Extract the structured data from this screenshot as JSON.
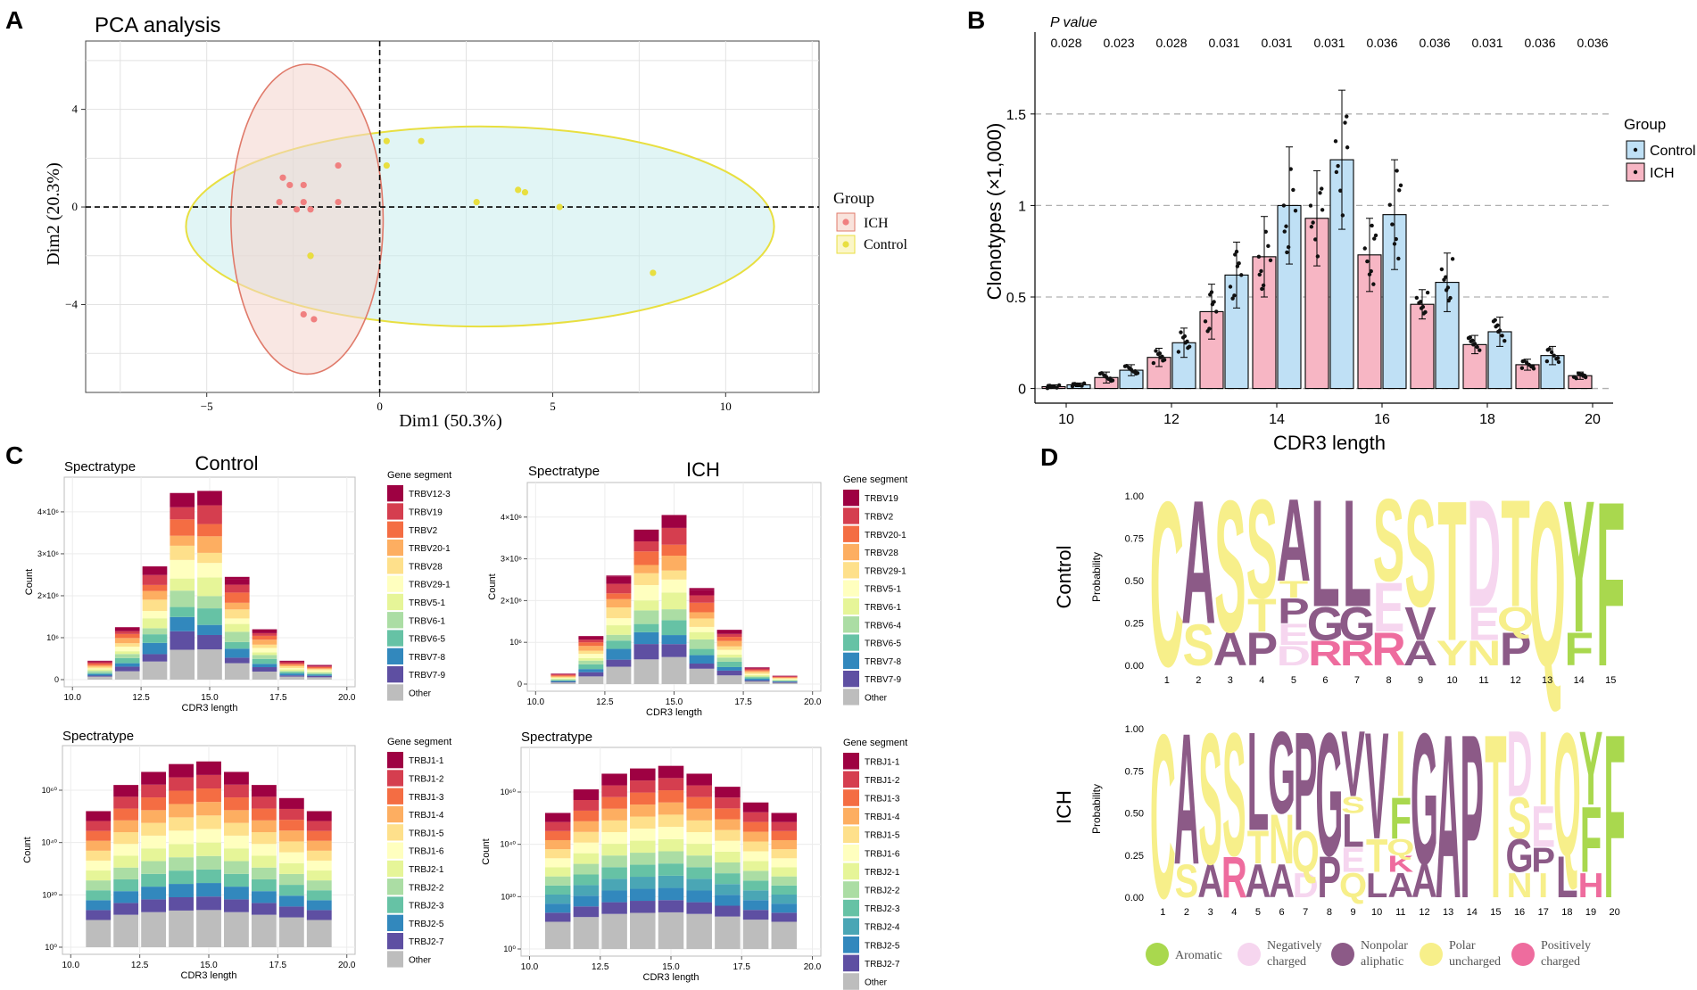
{
  "panels": {
    "A": "A",
    "B": "B",
    "C": "C",
    "D": "D"
  },
  "colors": {
    "ich": "#f08080",
    "control": "#e8df40",
    "ellipse_ich": "#f4d3cc",
    "ellipse_ctrl": "#c8ecec",
    "bar_ich": "#f7b6c4",
    "bar_ctrl": "#bfe0f5"
  },
  "chart_data": [
    {
      "id": "A",
      "type": "scatter",
      "title": "PCA analysis",
      "xlabel": "Dim1 (50.3%)",
      "ylabel": "Dim2 (20.3%)",
      "xlim": [
        -8.5,
        12.7
      ],
      "ylim": [
        -7.6,
        6.8
      ],
      "xticks": [
        -5,
        0,
        5,
        10
      ],
      "yticks": [
        4,
        0,
        -4
      ],
      "legend": {
        "title": "Group",
        "entries": [
          "ICH",
          "Control"
        ]
      },
      "series": [
        {
          "name": "ICH",
          "points": [
            [
              -2.8,
              1.2
            ],
            [
              -2.6,
              0.9
            ],
            [
              -2.2,
              0.9
            ],
            [
              -1.2,
              1.7
            ],
            [
              -2.9,
              0.2
            ],
            [
              -2.2,
              0.2
            ],
            [
              -1.2,
              0.2
            ],
            [
              -2.4,
              -0.1
            ],
            [
              -2,
              -0.1
            ],
            [
              -2,
              -2
            ],
            [
              -2.2,
              -4.4
            ],
            [
              -1.9,
              -4.6
            ]
          ]
        },
        {
          "name": "Control",
          "points": [
            [
              0.2,
              2.7
            ],
            [
              1.2,
              2.7
            ],
            [
              0.2,
              1.7
            ],
            [
              4,
              0.7
            ],
            [
              4.2,
              0.6
            ],
            [
              2.8,
              0.2
            ],
            [
              5.2,
              0
            ],
            [
              -2,
              -2
            ],
            [
              7.9,
              -2.7
            ]
          ]
        }
      ]
    },
    {
      "id": "B",
      "type": "bar",
      "xlabel": "CDR3 length",
      "ylabel": "Clonotypes (×1,000)",
      "ylim": [
        -0.08,
        1.85
      ],
      "yticks": [
        0,
        0.5,
        1,
        1.5
      ],
      "xticks": [
        10,
        12,
        14,
        16,
        18,
        20
      ],
      "legend": {
        "title": "Group",
        "entries": [
          "Control",
          "ICH"
        ]
      },
      "pvalue_title": "P value",
      "pvalues": [
        "0.028",
        "0.023",
        "0.028",
        "0.031",
        "0.031",
        "0.031",
        "0.036",
        "0.036",
        "0.031",
        "0.036",
        "0.036"
      ],
      "categories": [
        10,
        11,
        12,
        13,
        14,
        15,
        16,
        17,
        18,
        19,
        20
      ],
      "series": [
        {
          "name": "ICH",
          "values": [
            0.01,
            0.06,
            0.17,
            0.42,
            0.72,
            0.93,
            0.73,
            0.46,
            0.24,
            0.13,
            0.07
          ],
          "errors": [
            0.01,
            0.03,
            0.05,
            0.15,
            0.22,
            0.26,
            0.2,
            0.08,
            0.05,
            0.03,
            0.02
          ]
        },
        {
          "name": "Control",
          "values": [
            0.02,
            0.1,
            0.25,
            0.62,
            1.0,
            1.25,
            0.95,
            0.58,
            0.31,
            0.18,
            0.0
          ],
          "errors": [
            0.01,
            0.03,
            0.08,
            0.18,
            0.32,
            0.38,
            0.3,
            0.16,
            0.08,
            0.05,
            0.0
          ]
        }
      ]
    },
    {
      "id": "C-control-v",
      "type": "bar",
      "stacked": true,
      "title": "Control",
      "subtitle": "Spectratype",
      "xlabel": "CDR3 length",
      "ylabel": "Count",
      "ytick_labels": [
        "0",
        "10⁶",
        "2×10⁶",
        "3×10⁶",
        "4×10⁶"
      ],
      "xtick_labels": [
        "10.0",
        "12.5",
        "15.0",
        "17.5",
        "20.0"
      ],
      "legend_title": "Gene segment",
      "segments": [
        "TRBV12-3",
        "TRBV19",
        "TRBV2",
        "TRBV20-1",
        "TRBV28",
        "TRBV29-1",
        "TRBV5-1",
        "TRBV6-1",
        "TRBV6-5",
        "TRBV7-8",
        "TRBV7-9",
        "Other"
      ],
      "categories": [
        11,
        12,
        13,
        14,
        15,
        16,
        17,
        18,
        19
      ],
      "totals_millions": [
        0.45,
        1.25,
        2.7,
        4.45,
        4.5,
        2.45,
        1.2,
        0.45,
        0.35
      ]
    },
    {
      "id": "C-ich-v",
      "type": "bar",
      "stacked": true,
      "title": "ICH",
      "subtitle": "Spectratype",
      "xlabel": "CDR3 length",
      "ylabel": "Count",
      "ytick_labels": [
        "0",
        "10⁶",
        "2×10⁶",
        "3×10⁶",
        "4×10⁶"
      ],
      "xtick_labels": [
        "10.0",
        "12.5",
        "15.0",
        "17.5",
        "20.0"
      ],
      "legend_title": "Gene segment",
      "segments": [
        "TRBV19",
        "TRBV2",
        "TRBV20-1",
        "TRBV28",
        "TRBV29-1",
        "TRBV5-1",
        "TRBV6-1",
        "TRBV6-4",
        "TRBV6-5",
        "TRBV7-8",
        "TRBV7-9",
        "Other"
      ],
      "categories": [
        11,
        12,
        13,
        14,
        15,
        16,
        17,
        18,
        19
      ],
      "totals_millions": [
        0.25,
        1.15,
        2.6,
        3.7,
        4.05,
        2.3,
        1.3,
        0.4,
        0.2
      ]
    },
    {
      "id": "C-control-j",
      "type": "bar",
      "stacked": true,
      "subtitle": "Spectratype",
      "xlabel": "CDR3 length",
      "ylabel": "Count",
      "ytick_labels": [
        "10⁰",
        "10²⁰",
        "10⁴⁰",
        "10⁶⁰"
      ],
      "xtick_labels": [
        "10.0",
        "12.5",
        "15.0",
        "17.5",
        "20.0"
      ],
      "legend_title": "Gene segment",
      "segments": [
        "TRBJ1-1",
        "TRBJ1-2",
        "TRBJ1-3",
        "TRBJ1-4",
        "TRBJ1-5",
        "TRBJ1-6",
        "TRBJ2-1",
        "TRBJ2-2",
        "TRBJ2-3",
        "TRBJ2-5",
        "TRBJ2-7",
        "Other"
      ],
      "categories": [
        11,
        12,
        13,
        14,
        15,
        16,
        17,
        18,
        19
      ],
      "totals_log10": [
        52,
        62,
        67,
        70,
        71,
        67,
        62,
        57,
        52
      ]
    },
    {
      "id": "C-ich-j",
      "type": "bar",
      "stacked": true,
      "subtitle": "Spectratype",
      "xlabel": "CDR3 length",
      "ylabel": "Count",
      "ytick_labels": [
        "10⁰",
        "10²⁰",
        "10⁴⁰",
        "10⁶⁰"
      ],
      "xtick_labels": [
        "10.0",
        "12.5",
        "15.0",
        "17.5",
        "20.0"
      ],
      "legend_title": "Gene segment",
      "segments": [
        "TRBJ1-1",
        "TRBJ1-2",
        "TRBJ1-3",
        "TRBJ1-4",
        "TRBJ1-5",
        "TRBJ1-6",
        "TRBJ2-1",
        "TRBJ2-2",
        "TRBJ2-3",
        "TRBJ2-4",
        "TRBJ2-5",
        "TRBJ2-7",
        "Other"
      ],
      "categories": [
        11,
        12,
        13,
        14,
        15,
        16,
        17,
        18,
        19
      ],
      "totals_log10": [
        52,
        61,
        67,
        69,
        70,
        67,
        62,
        56,
        52
      ]
    },
    {
      "id": "D-control",
      "type": "sequence-logo",
      "row_label": "Control",
      "ylabel": "Probability",
      "yticks": [
        "1.00",
        "0.75",
        "0.50",
        "0.25",
        "0.00"
      ],
      "positions": [
        "1",
        "2",
        "3",
        "4",
        "5",
        "6",
        "7",
        "8",
        "9",
        "10",
        "11",
        "12",
        "13",
        "14",
        "15"
      ],
      "stacks": [
        [
          [
            "C",
            1.0,
            "polar"
          ]
        ],
        [
          [
            "S",
            0.25,
            "polar"
          ],
          [
            "A",
            0.75,
            "nonpolar"
          ]
        ],
        [
          [
            "A",
            0.2,
            "nonpolar"
          ],
          [
            "S",
            0.8,
            "polar"
          ]
        ],
        [
          [
            "P",
            0.2,
            "nonpolar"
          ],
          [
            "T",
            0.2,
            "polar"
          ],
          [
            "S",
            0.6,
            "polar"
          ]
        ],
        [
          [
            "D",
            0.12,
            "negative"
          ],
          [
            "E",
            0.13,
            "negative"
          ],
          [
            "P",
            0.15,
            "nonpolar"
          ],
          [
            "T",
            0.1,
            "polar"
          ],
          [
            "A",
            0.5,
            "nonpolar"
          ]
        ],
        [
          [
            "R",
            0.15,
            "positive"
          ],
          [
            "G",
            0.2,
            "nonpolar"
          ],
          [
            "L",
            0.65,
            "nonpolar"
          ]
        ],
        [
          [
            "R",
            0.15,
            "positive"
          ],
          [
            "G",
            0.2,
            "nonpolar"
          ],
          [
            "L",
            0.65,
            "nonpolar"
          ]
        ],
        [
          [
            "R",
            0.2,
            "positive"
          ],
          [
            "E",
            0.3,
            "negative"
          ],
          [
            "S",
            0.5,
            "polar"
          ]
        ],
        [
          [
            "A",
            0.15,
            "nonpolar"
          ],
          [
            "V",
            0.2,
            "nonpolar"
          ],
          [
            "S",
            0.65,
            "polar"
          ]
        ],
        [
          [
            "Y",
            0.15,
            "polar"
          ],
          [
            "T",
            0.85,
            "polar"
          ]
        ],
        [
          [
            "N",
            0.15,
            "polar"
          ],
          [
            "E",
            0.2,
            "negative"
          ],
          [
            "D",
            0.65,
            "negative"
          ]
        ],
        [
          [
            "P",
            0.2,
            "nonpolar"
          ],
          [
            "Q",
            0.15,
            "polar"
          ],
          [
            "T",
            0.65,
            "polar"
          ]
        ],
        [
          [
            "Q",
            1.0,
            "polar"
          ]
        ],
        [
          [
            "F",
            0.2,
            "aromatic"
          ],
          [
            "Y",
            0.8,
            "aromatic"
          ]
        ],
        [
          [
            "F",
            1.0,
            "aromatic"
          ]
        ]
      ]
    },
    {
      "id": "D-ich",
      "type": "sequence-logo",
      "row_label": "ICH",
      "ylabel": "Probability",
      "yticks": [
        "1.00",
        "0.75",
        "0.50",
        "0.25",
        "0.00"
      ],
      "positions": [
        "1",
        "2",
        "3",
        "4",
        "5",
        "6",
        "7",
        "8",
        "9",
        "10",
        "11",
        "12",
        "13",
        "14",
        "15",
        "16",
        "17",
        "18",
        "19",
        "20"
      ],
      "stacks": [
        [
          [
            "C",
            1.0,
            "polar"
          ]
        ],
        [
          [
            "S",
            0.2,
            "polar"
          ],
          [
            "A",
            0.8,
            "nonpolar"
          ]
        ],
        [
          [
            "A",
            0.2,
            "nonpolar"
          ],
          [
            "S",
            0.8,
            "polar"
          ]
        ],
        [
          [
            "R",
            0.25,
            "positive"
          ],
          [
            "S",
            0.75,
            "polar"
          ]
        ],
        [
          [
            "A",
            0.2,
            "nonpolar"
          ],
          [
            "T",
            0.2,
            "polar"
          ],
          [
            "L",
            0.6,
            "nonpolar"
          ]
        ],
        [
          [
            "A",
            0.2,
            "nonpolar"
          ],
          [
            "N",
            0.3,
            "polar"
          ],
          [
            "G",
            0.5,
            "nonpolar"
          ]
        ],
        [
          [
            "D",
            0.15,
            "negative"
          ],
          [
            "Q",
            0.25,
            "polar"
          ],
          [
            "P",
            0.6,
            "nonpolar"
          ]
        ],
        [
          [
            "P",
            0.25,
            "nonpolar"
          ],
          [
            "G",
            0.75,
            "nonpolar"
          ]
        ],
        [
          [
            "Q",
            0.15,
            "polar"
          ],
          [
            "E",
            0.15,
            "negative"
          ],
          [
            "L",
            0.2,
            "nonpolar"
          ],
          [
            "S",
            0.1,
            "polar"
          ],
          [
            "V",
            0.4,
            "nonpolar"
          ]
        ],
        [
          [
            "L",
            0.15,
            "nonpolar"
          ],
          [
            "T",
            0.2,
            "polar"
          ],
          [
            "V",
            0.65,
            "nonpolar"
          ]
        ],
        [
          [
            "A",
            0.15,
            "nonpolar"
          ],
          [
            "K",
            0.1,
            "positive"
          ],
          [
            "Q",
            0.1,
            "polar"
          ],
          [
            "F",
            0.25,
            "aromatic"
          ],
          [
            "I",
            0.4,
            "polar"
          ]
        ],
        [
          [
            "A",
            0.2,
            "nonpolar"
          ],
          [
            "G",
            0.8,
            "nonpolar"
          ]
        ],
        [
          [
            "A",
            1.0,
            "nonpolar"
          ]
        ],
        [
          [
            "P",
            1.0,
            "nonpolar"
          ]
        ],
        [
          [
            "T",
            1.0,
            "polar"
          ]
        ],
        [
          [
            "N",
            0.15,
            "polar"
          ],
          [
            "G",
            0.2,
            "nonpolar"
          ],
          [
            "S",
            0.25,
            "polar"
          ],
          [
            "D",
            0.4,
            "negative"
          ]
        ],
        [
          [
            "I",
            0.15,
            "polar"
          ],
          [
            "P",
            0.15,
            "nonpolar"
          ],
          [
            "E",
            0.25,
            "negative"
          ],
          [
            "I",
            0.45,
            "polar"
          ]
        ],
        [
          [
            "L",
            0.25,
            "nonpolar"
          ],
          [
            "Q",
            0.75,
            "polar"
          ]
        ],
        [
          [
            "H",
            0.15,
            "positive"
          ],
          [
            "F",
            0.4,
            "aromatic"
          ],
          [
            "Y",
            0.45,
            "aromatic"
          ]
        ],
        [
          [
            "F",
            1.0,
            "aromatic"
          ]
        ]
      ]
    }
  ],
  "logo_legend": [
    {
      "key": "aromatic",
      "label": "Aromatic",
      "color": "#a9d84e"
    },
    {
      "key": "negative",
      "label": "Negatively charged",
      "color": "#f6d6ef"
    },
    {
      "key": "nonpolar",
      "label": "Nonpolar aliphatic",
      "color": "#8c5a87"
    },
    {
      "key": "polar",
      "label": "Polar uncharged",
      "color": "#f7ef8a"
    },
    {
      "key": "positive",
      "label": "Positively charged",
      "color": "#ee6c9e"
    }
  ],
  "spectral_v": [
    "#9e0142",
    "#d53e4f",
    "#f46d43",
    "#fdae61",
    "#fee08b",
    "#ffffbf",
    "#e6f598",
    "#abdda4",
    "#66c2a5",
    "#3288bd",
    "#5e4fa2",
    "#bdbdbd"
  ],
  "spectral_j": [
    "#9e0142",
    "#d53e4f",
    "#f46d43",
    "#fdae61",
    "#fee08b",
    "#ffffbf",
    "#e6f598",
    "#abdda4",
    "#66c2a5",
    "#3288bd",
    "#5e4fa2",
    "#bdbdbd"
  ],
  "spectral_j13": [
    "#9e0142",
    "#d53e4f",
    "#f46d43",
    "#fdae61",
    "#fee08b",
    "#ffffbf",
    "#e6f598",
    "#abdda4",
    "#66c2a5",
    "#4aa6b5",
    "#3288bd",
    "#5e4fa2",
    "#bdbdbd"
  ]
}
